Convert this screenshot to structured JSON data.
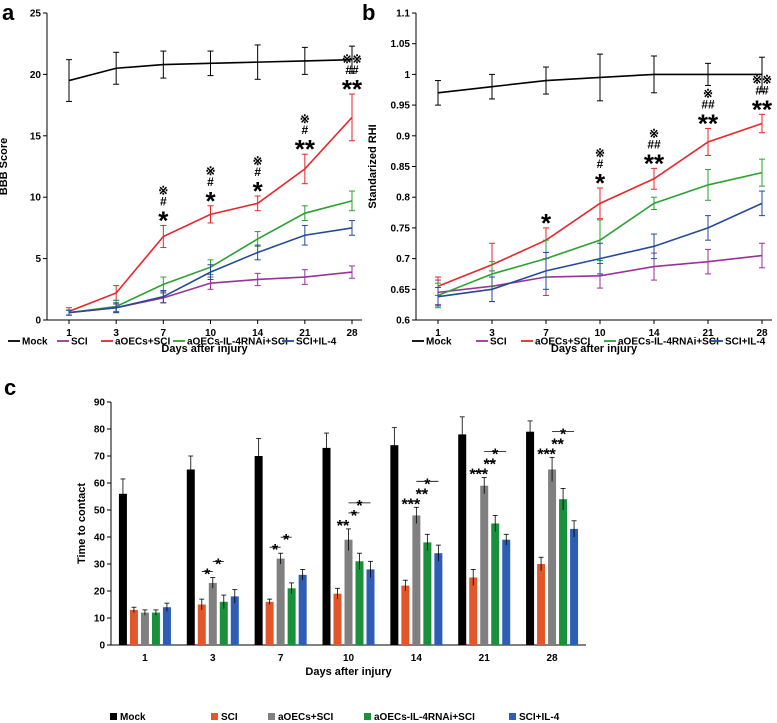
{
  "chart_data": [
    {
      "panel": "a",
      "type": "line",
      "xlabel": "Days after injury",
      "ylabel": "BBB Score",
      "ylim": [
        0,
        25
      ],
      "yticks": [
        0,
        5,
        10,
        15,
        20,
        25
      ],
      "x": [
        "1",
        "3",
        "7",
        "10",
        "14",
        "21",
        "28"
      ],
      "series": [
        {
          "name": "Mock",
          "color": "#000000",
          "values": [
            19.5,
            20.5,
            20.8,
            20.9,
            21.0,
            21.1,
            21.2
          ],
          "errors": [
            1.7,
            1.3,
            1.1,
            1.0,
            1.4,
            1.1,
            1.1
          ]
        },
        {
          "name": "SCI",
          "color": "#993399",
          "values": [
            0.6,
            1.0,
            1.8,
            3.0,
            3.3,
            3.5,
            3.9
          ],
          "errors": [
            0.2,
            0.3,
            0.4,
            0.5,
            0.5,
            0.6,
            0.5
          ]
        },
        {
          "name": "aOECs+SCI",
          "color": "#e8262b",
          "values": [
            0.7,
            2.2,
            6.8,
            8.6,
            9.5,
            12.3,
            16.5
          ],
          "errors": [
            0.3,
            0.6,
            0.9,
            0.7,
            0.6,
            1.2,
            1.9
          ]
        },
        {
          "name": "aOECs-IL-4RNAi+SCI",
          "color": "#2ba132",
          "values": [
            0.6,
            1.1,
            2.9,
            4.3,
            6.6,
            8.7,
            9.7
          ],
          "errors": [
            0.2,
            0.5,
            0.6,
            0.6,
            0.6,
            0.6,
            0.8
          ]
        },
        {
          "name": "SCI+IL-4",
          "color": "#244a9a",
          "values": [
            0.6,
            1.0,
            1.9,
            3.9,
            5.5,
            6.9,
            7.5
          ],
          "errors": [
            0.2,
            0.4,
            0.5,
            0.6,
            0.6,
            0.8,
            0.6
          ]
        }
      ],
      "annotations": [
        {
          "x": "7",
          "stack": [
            "※",
            "#",
            "*"
          ]
        },
        {
          "x": "10",
          "stack": [
            "※",
            "#",
            "*"
          ]
        },
        {
          "x": "14",
          "stack": [
            "※",
            "#",
            "*"
          ]
        },
        {
          "x": "21",
          "stack": [
            "※",
            "#",
            "**"
          ]
        },
        {
          "x": "28",
          "stack": [
            "※※",
            "##",
            "**"
          ]
        }
      ]
    },
    {
      "panel": "b",
      "type": "line",
      "xlabel": "Days after injury",
      "ylabel": "Standarized RHI",
      "ylim": [
        0.6,
        1.1
      ],
      "yticks": [
        "0.6",
        "0.65",
        "0.7",
        "0.75",
        "0.8",
        "0.85",
        "0.9",
        "0.95",
        "1",
        "1.05",
        "1.1"
      ],
      "x": [
        "1",
        "3",
        "7",
        "10",
        "14",
        "21",
        "28"
      ],
      "series": [
        {
          "name": "Mock",
          "color": "#000000",
          "values": [
            0.97,
            0.98,
            0.99,
            0.995,
            1.0,
            1.0,
            1.0
          ],
          "errors": [
            0.02,
            0.02,
            0.022,
            0.038,
            0.03,
            0.018,
            0.028
          ]
        },
        {
          "name": "SCI",
          "color": "#993399",
          "values": [
            0.645,
            0.655,
            0.67,
            0.672,
            0.687,
            0.695,
            0.705
          ],
          "errors": [
            0.02,
            0.025,
            0.03,
            0.02,
            0.022,
            0.02,
            0.02
          ]
        },
        {
          "name": "aOECs+SCI",
          "color": "#e8262b",
          "values": [
            0.655,
            0.69,
            0.73,
            0.79,
            0.83,
            0.89,
            0.92
          ],
          "errors": [
            0.015,
            0.035,
            0.02,
            0.025,
            0.017,
            0.022,
            0.015
          ]
        },
        {
          "name": "aOECs-IL-4RNAi+SCI",
          "color": "#2ba132",
          "values": [
            0.64,
            0.675,
            0.7,
            0.73,
            0.79,
            0.82,
            0.84
          ],
          "errors": [
            0.02,
            0.02,
            0.03,
            0.033,
            0.01,
            0.025,
            0.022
          ]
        },
        {
          "name": "SCI+IL-4",
          "color": "#244a9a",
          "values": [
            0.638,
            0.65,
            0.68,
            0.7,
            0.72,
            0.75,
            0.79
          ],
          "errors": [
            0.015,
            0.02,
            0.03,
            0.025,
            0.02,
            0.02,
            0.02
          ]
        }
      ],
      "annotations": [
        {
          "x": "7",
          "stack": [
            "*"
          ]
        },
        {
          "x": "10",
          "stack": [
            "※",
            "#",
            "*"
          ]
        },
        {
          "x": "14",
          "stack": [
            "※",
            "##",
            "**"
          ]
        },
        {
          "x": "21",
          "stack": [
            "※",
            "##",
            "**"
          ]
        },
        {
          "x": "28",
          "stack": [
            "※※",
            "##",
            "**"
          ]
        }
      ]
    },
    {
      "panel": "c",
      "type": "bar",
      "xlabel": "Days after injury",
      "ylabel": "Time to contact",
      "ylim": [
        0,
        90
      ],
      "yticks": [
        0,
        10,
        20,
        30,
        40,
        50,
        60,
        70,
        80,
        90
      ],
      "categories": [
        "1",
        "3",
        "7",
        "10",
        "14",
        "21",
        "28"
      ],
      "series": [
        {
          "name": "Mock",
          "color": "#000000",
          "values": [
            56,
            65,
            70,
            73,
            74,
            78,
            79
          ],
          "errors": [
            5.5,
            5,
            6.5,
            5.5,
            6.5,
            6.5,
            4
          ]
        },
        {
          "name": "SCI",
          "color": "#e3562a",
          "values": [
            13,
            15,
            16,
            19,
            22,
            25,
            30
          ],
          "errors": [
            1,
            2,
            1,
            2,
            2,
            3,
            2.5
          ]
        },
        {
          "name": "aOECs+SCI",
          "color": "#808080",
          "values": [
            12,
            23,
            32,
            39,
            48,
            59,
            65
          ],
          "errors": [
            1,
            2,
            2,
            4,
            3,
            3,
            4.5
          ]
        },
        {
          "name": "aOECs-IL-4RNAi+SCI",
          "color": "#1a8f3c",
          "values": [
            12,
            16,
            21,
            31,
            38,
            45,
            54
          ],
          "errors": [
            1,
            2.5,
            2,
            3,
            3,
            3,
            4
          ]
        },
        {
          "name": "SCI+IL-4",
          "color": "#2e5db5",
          "values": [
            14,
            18,
            26,
            28,
            34,
            39,
            43
          ],
          "errors": [
            1.5,
            2.5,
            2,
            3,
            3,
            2,
            3
          ]
        }
      ],
      "significance": [
        {
          "category": "3",
          "marks": [
            "*",
            "*"
          ]
        },
        {
          "category": "7",
          "marks": [
            "*",
            "*"
          ]
        },
        {
          "category": "10",
          "marks": [
            "**",
            "*",
            "*"
          ]
        },
        {
          "category": "14",
          "marks": [
            "***",
            "**",
            "*"
          ]
        },
        {
          "category": "21",
          "marks": [
            "***",
            "**",
            "*"
          ]
        },
        {
          "category": "28",
          "marks": [
            "***",
            "**",
            "*"
          ]
        }
      ]
    }
  ],
  "labels": {
    "panel_a": "a",
    "panel_b": "b",
    "panel_c": "c"
  }
}
